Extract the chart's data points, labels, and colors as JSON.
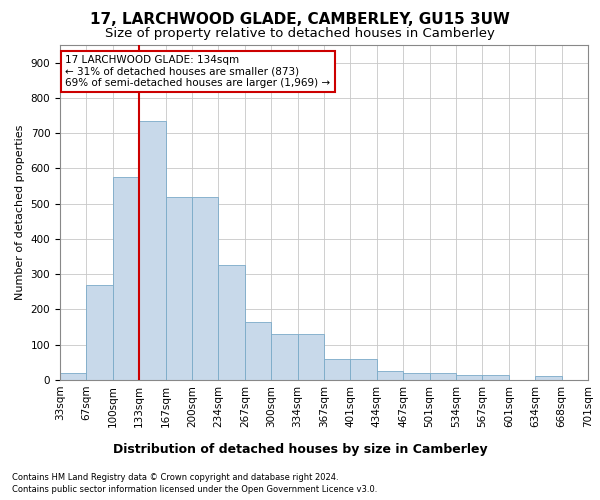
{
  "title": "17, LARCHWOOD GLADE, CAMBERLEY, GU15 3UW",
  "subtitle": "Size of property relative to detached houses in Camberley",
  "xlabel": "Distribution of detached houses by size in Camberley",
  "ylabel": "Number of detached properties",
  "bar_values": [
    20,
    270,
    575,
    735,
    520,
    520,
    325,
    165,
    130,
    130,
    60,
    60,
    25,
    20,
    20,
    15,
    15,
    0,
    10,
    0
  ],
  "bin_labels": [
    "33sqm",
    "67sqm",
    "100sqm",
    "133sqm",
    "167sqm",
    "200sqm",
    "234sqm",
    "267sqm",
    "300sqm",
    "334sqm",
    "367sqm",
    "401sqm",
    "434sqm",
    "467sqm",
    "501sqm",
    "534sqm",
    "567sqm",
    "601sqm",
    "634sqm",
    "668sqm",
    "701sqm"
  ],
  "bar_color": "#c8d9ea",
  "bar_edge_color": "#7aaac8",
  "grid_color": "#c8c8c8",
  "vline_x": 3,
  "vline_color": "#cc0000",
  "annotation_text": "17 LARCHWOOD GLADE: 134sqm\n← 31% of detached houses are smaller (873)\n69% of semi-detached houses are larger (1,969) →",
  "annotation_box_color": "#ffffff",
  "annotation_box_edge": "#cc0000",
  "footnote1": "Contains HM Land Registry data © Crown copyright and database right 2024.",
  "footnote2": "Contains public sector information licensed under the Open Government Licence v3.0.",
  "ylim": [
    0,
    950
  ],
  "yticks": [
    0,
    100,
    200,
    300,
    400,
    500,
    600,
    700,
    800,
    900
  ],
  "title_fontsize": 11,
  "subtitle_fontsize": 9.5,
  "xlabel_fontsize": 9,
  "ylabel_fontsize": 8,
  "tick_fontsize": 7.5,
  "annotation_fontsize": 7.5,
  "footnote_fontsize": 6
}
